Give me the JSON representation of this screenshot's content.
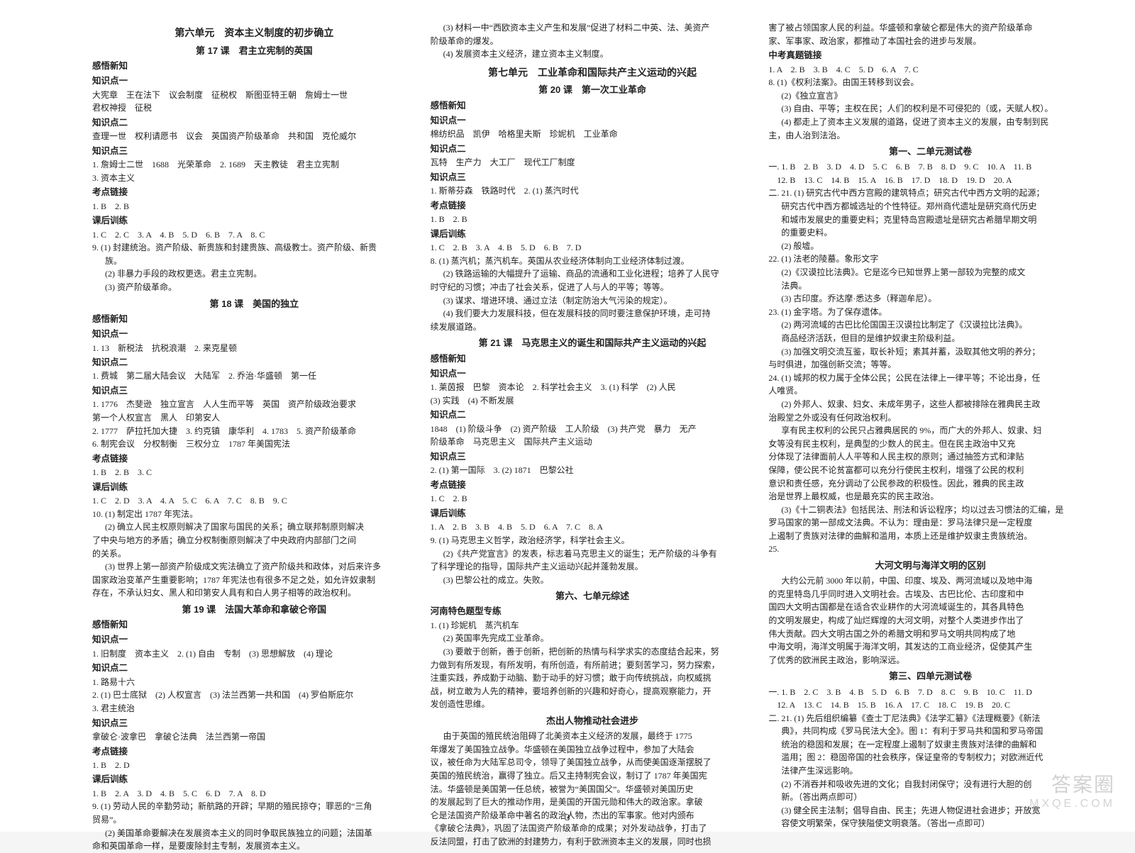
{
  "pageNumber": "3",
  "watermark": {
    "main": "答案圈",
    "sub": "MXQE.COM"
  },
  "col1": [
    {
      "t": "section",
      "v": "第六单元　资本主义制度的初步确立"
    },
    {
      "t": "lesson",
      "v": "第 17 课　君主立宪制的英国"
    },
    {
      "t": "sub",
      "v": "感悟新知"
    },
    {
      "t": "sub",
      "v": "知识点一"
    },
    {
      "t": "l",
      "v": "大宪章　王在法下　议会制度　征税权　斯图亚特王朝　詹姆士一世"
    },
    {
      "t": "l",
      "v": "君权神授　征税"
    },
    {
      "t": "sub",
      "v": "知识点二"
    },
    {
      "t": "l",
      "v": "查理一世　权利请愿书　议会　英国资产阶级革命　共和国　克伦威尔"
    },
    {
      "t": "sub",
      "v": "知识点三"
    },
    {
      "t": "l",
      "v": "1. 詹姆士二世　1688　光荣革命　2. 1689　天主教徒　君主立宪制"
    },
    {
      "t": "l",
      "v": "3. 资本主义"
    },
    {
      "t": "sub",
      "v": "考点链接"
    },
    {
      "t": "l",
      "v": "1. B　2. B"
    },
    {
      "t": "sub",
      "v": "课后训练"
    },
    {
      "t": "l",
      "v": "1. C　2. C　3. A　4. B　5. D　6. B　7. A　8. C"
    },
    {
      "t": "l",
      "v": "9. (1) 封建统治。资产阶级、新贵族和封建贵族、高级教士。资产阶级、新贵"
    },
    {
      "t": "il",
      "v": "族。"
    },
    {
      "t": "il",
      "v": "(2) 非暴力手段的政权更迭。君主立宪制。"
    },
    {
      "t": "il",
      "v": "(3) 资产阶级革命。"
    },
    {
      "t": "lesson",
      "v": "第 18 课　美国的独立"
    },
    {
      "t": "sub",
      "v": "感悟新知"
    },
    {
      "t": "sub",
      "v": "知识点一"
    },
    {
      "t": "l",
      "v": "1. 13　新税法　抗税浪潮　2. 来克星顿"
    },
    {
      "t": "sub",
      "v": "知识点二"
    },
    {
      "t": "l",
      "v": "1. 费城　第二届大陆会议　大陆军　2. 乔治·华盛顿　第一任"
    },
    {
      "t": "sub",
      "v": "知识点三"
    },
    {
      "t": "l",
      "v": "1. 1776　杰斐逊　独立宣言　人人生而平等　英国　资产阶级政治要求"
    },
    {
      "t": "l",
      "v": "第一个人权宣言　黑人　印第安人"
    },
    {
      "t": "l",
      "v": "2. 1777　萨拉托加大捷　3. 约克镇　康华利　4. 1783　5. 资产阶级革命"
    },
    {
      "t": "l",
      "v": "6. 制宪会议　分权制衡　三权分立　1787 年美国宪法"
    },
    {
      "t": "sub",
      "v": "考点链接"
    },
    {
      "t": "l",
      "v": "1. B　2. B　3. C"
    },
    {
      "t": "sub",
      "v": "课后训练"
    },
    {
      "t": "l",
      "v": "1. C　2. D　3. A　4. A　5. C　6. A　7. C　8. B　9. C"
    },
    {
      "t": "l",
      "v": "10. (1) 制定出 1787 年宪法。"
    },
    {
      "t": "il",
      "v": "(2) 确立人民主权原则解决了国家与国民的关系；确立联邦制原则解决"
    },
    {
      "t": "l",
      "v": "了中央与地方的矛盾；确立分权制衡原则解决了中央政府内部部门之间"
    },
    {
      "t": "l",
      "v": "的关系。"
    },
    {
      "t": "il",
      "v": "(3) 世界上第一部资产阶级成文宪法确立了资产阶级共和政体，对后来许多"
    },
    {
      "t": "l",
      "v": "国家政治变革产生重要影响；1787 年宪法也有很多不足之处，如允许奴隶制"
    },
    {
      "t": "l",
      "v": "存在，不承认妇女、黑人和印第安人具有和白人男子相等的政治权利。"
    },
    {
      "t": "lesson",
      "v": "第 19 课　法国大革命和拿破仑帝国"
    },
    {
      "t": "sub",
      "v": "感悟新知"
    },
    {
      "t": "sub",
      "v": "知识点一"
    },
    {
      "t": "l",
      "v": "1. 旧制度　资本主义　2. (1) 自由　专制　(3) 思想解放　(4) 理论"
    },
    {
      "t": "sub",
      "v": "知识点二"
    },
    {
      "t": "l",
      "v": "1. 路易十六"
    },
    {
      "t": "l",
      "v": "2. (1) 巴士底狱　(2) 人权宣言　(3) 法兰西第一共和国　(4) 罗伯斯庇尔"
    },
    {
      "t": "l",
      "v": "3. 君主统治"
    },
    {
      "t": "sub",
      "v": "知识点三"
    },
    {
      "t": "l",
      "v": "拿破仑·波拿巴　拿破仑法典　法兰西第一帝国"
    },
    {
      "t": "sub",
      "v": "考点链接"
    },
    {
      "t": "l",
      "v": "1. B　2. D"
    },
    {
      "t": "sub",
      "v": "课后训练"
    },
    {
      "t": "l",
      "v": "1. B　2. A　3. D　4. B　5. C　6. D　7. A　8. D"
    },
    {
      "t": "l",
      "v": "9. (1) 劳动人民的辛勤劳动；新航路的开辟；早期的殖民掠夺；罪恶的“三角"
    },
    {
      "t": "l",
      "v": "贸易”。"
    },
    {
      "t": "il",
      "v": "(2) 美国革命要解决在发展资本主义的同时争取民族独立的问题；法国革"
    },
    {
      "t": "l",
      "v": "命和英国革命一样，是要废除封主专制，发展资本主义。"
    }
  ],
  "col2": [
    {
      "t": "il",
      "v": "(3) 材料一中“西欧资本主义产生和发展”促进了材料二中英、法、美资产"
    },
    {
      "t": "l",
      "v": "阶级革命的爆发。"
    },
    {
      "t": "il",
      "v": "(4) 发展资本主义经济，建立资本主义制度。"
    },
    {
      "t": "section",
      "v": "第七单元　工业革命和国际共产主义运动的兴起"
    },
    {
      "t": "lesson",
      "v": "第 20 课　第一次工业革命"
    },
    {
      "t": "sub",
      "v": "感悟新知"
    },
    {
      "t": "sub",
      "v": "知识点一"
    },
    {
      "t": "l",
      "v": "棉纺织品　凯伊　哈格里夫斯　珍妮机　工业革命"
    },
    {
      "t": "sub",
      "v": "知识点二"
    },
    {
      "t": "l",
      "v": "瓦特　生产力　大工厂　现代工厂制度"
    },
    {
      "t": "sub",
      "v": "知识点三"
    },
    {
      "t": "l",
      "v": "1. 斯蒂芬森　铁路时代　2. (1) 蒸汽时代"
    },
    {
      "t": "sub",
      "v": "考点链接"
    },
    {
      "t": "l",
      "v": "1. B　2. B"
    },
    {
      "t": "sub",
      "v": "课后训练"
    },
    {
      "t": "l",
      "v": "1. C　2. B　3. A　4. B　5. D　6. B　7. D"
    },
    {
      "t": "l",
      "v": "8. (1) 蒸汽机；蒸汽机车。英国从农业经济体制向工业经济体制过渡。"
    },
    {
      "t": "il",
      "v": "(2) 铁路运输的大幅提升了运输、商品的流通和工业化进程；培养了人民守"
    },
    {
      "t": "l",
      "v": "时守纪的习惯；冲击了社会关系，促进了人与人的平等；等等。"
    },
    {
      "t": "il",
      "v": "(3) 谋求、增进环境、通过立法（制定防治大气污染的规定）。"
    },
    {
      "t": "il",
      "v": "(4) 我们要大力发展科技，但在发展科技的同时要注意保护环境，走可持"
    },
    {
      "t": "l",
      "v": "续发展道路。"
    },
    {
      "t": "lesson",
      "v": "第 21 课　马克思主义的诞生和国际共产主义运动的兴起"
    },
    {
      "t": "sub",
      "v": "感悟新知"
    },
    {
      "t": "sub",
      "v": "知识点一"
    },
    {
      "t": "l",
      "v": "1. 莱茵报　巴黎　资本论　2. 科学社会主义　3. (1) 科学　(2) 人民"
    },
    {
      "t": "l",
      "v": "(3) 实践　(4) 不断发展"
    },
    {
      "t": "sub",
      "v": "知识点二"
    },
    {
      "t": "l",
      "v": "1848　(1) 阶级斗争　(2) 资产阶级　工人阶级　(3) 共产党　暴力　无产"
    },
    {
      "t": "l",
      "v": "阶级革命　马克思主义　国际共产主义运动"
    },
    {
      "t": "sub",
      "v": "知识点三"
    },
    {
      "t": "l",
      "v": "2. (1) 第一国际　3. (2) 1871　巴黎公社"
    },
    {
      "t": "sub",
      "v": "考点链接"
    },
    {
      "t": "l",
      "v": "1. C　2. B"
    },
    {
      "t": "sub",
      "v": "课后训练"
    },
    {
      "t": "l",
      "v": "1. A　2. B　3. B　4. B　5. D　6. A　7. C　8. A"
    },
    {
      "t": "l",
      "v": "9. (1) 马克思主义哲学，政治经济学，科学社会主义。"
    },
    {
      "t": "il",
      "v": "(2)《共产党宣言》的发表，标志着马克思主义的诞生；无产阶级的斗争有"
    },
    {
      "t": "l",
      "v": "了科学理论的指导，国际共产主义运动兴起并蓬勃发展。"
    },
    {
      "t": "il",
      "v": "(3) 巴黎公社的成立。失败。"
    },
    {
      "t": "lesson",
      "v": "第六、七单元综述"
    },
    {
      "t": "sub",
      "v": "河南特色题型专练"
    },
    {
      "t": "l",
      "v": "1. (1) 珍妮机　蒸汽机车"
    },
    {
      "t": "il",
      "v": "(2) 英国率先完成工业革命。"
    },
    {
      "t": "il",
      "v": "(3) 要敢于创新，善于创新，把创新的热情与科学求实的态度结合起来，努"
    },
    {
      "t": "l",
      "v": "力做到有所发现，有所发明，有所创造，有所前进；要刻苦学习，努力探索，"
    },
    {
      "t": "l",
      "v": "注重实践，养成勤于动脑、勤于动手的好习惯；敢于向传统挑战，向权威挑"
    },
    {
      "t": "l",
      "v": "战，树立敢为人先的精神，要培养创新的兴趣和好奇心，提高观察能力，开"
    },
    {
      "t": "l",
      "v": "发创造性思维。"
    },
    {
      "t": "lesson",
      "v": "杰出人物推动社会进步"
    },
    {
      "t": "il",
      "v": "由于英国的殖民统治阻碍了北美资本主义经济的发展，最终于 1775"
    },
    {
      "t": "l",
      "v": "年爆发了美国独立战争。华盛顿在美国独立战争过程中，参加了大陆会"
    },
    {
      "t": "l",
      "v": "议，被任命为大陆军总司令，领导了美国独立战争，从而使美国逐渐摆脱了"
    },
    {
      "t": "l",
      "v": "英国的殖民统治，赢得了独立。后又主持制宪会议，制订了 1787 年美国宪"
    },
    {
      "t": "l",
      "v": "法。华盛顿是美国第一任总统，被誉为“美国国父”。华盛顿对美国历史"
    },
    {
      "t": "l",
      "v": "的发展起到了巨大的推动作用，是美国的开国元勋和伟大的政治家。拿破"
    },
    {
      "t": "l",
      "v": "仑是法国资产阶级革命中著名的政治人物，杰出的军事家。他对内颁布"
    },
    {
      "t": "l",
      "v": "《拿破仑法典》，巩固了法国资产阶级革命的成果；对外发动战争，打击了"
    },
    {
      "t": "l",
      "v": "反法同盟，打击了欧洲的封建势力，有利于欧洲资本主义的发展，同时也损"
    }
  ],
  "col3": [
    {
      "t": "l",
      "v": "害了被占领国家人民的利益。华盛顿和拿破仑都是伟大的资产阶级革命"
    },
    {
      "t": "l",
      "v": "家、军事家、政治家，都推动了本国社会的进步与发展。"
    },
    {
      "t": "sub",
      "v": "中考真题链接"
    },
    {
      "t": "l",
      "v": "1. A　2. B　3. B　4. C　5. D　6. A　7. C"
    },
    {
      "t": "l",
      "v": "8. (1)《权利法案》。由国王转移到议会。"
    },
    {
      "t": "il",
      "v": "(2)《独立宣言》"
    },
    {
      "t": "il",
      "v": "(3) 自由、平等；主权在民；人们的权利是不可侵犯的（或，天赋人权）。"
    },
    {
      "t": "il",
      "v": "(4) 都走上了资本主义发展的道路，促进了资本主义的发展，由专制到民"
    },
    {
      "t": "l",
      "v": "主，由人治到法治。"
    },
    {
      "t": "lesson",
      "v": "第一、二单元测试卷"
    },
    {
      "t": "l",
      "v": "一. 1. B　2. B　3. D　4. D　5. C　6. B　7. B　8. D　9. C　10. A　11. B"
    },
    {
      "t": "l",
      "v": "　12. B　13. C　14. B　15. A　16. B　17. D　18. D　19. D　20. A"
    },
    {
      "t": "l",
      "v": "二. 21. (1) 研究古代中西方宫殿的建筑特点；研究古代中西方文明的起源；"
    },
    {
      "t": "il",
      "v": "研究古代中西方都城选址的个性特征。郑州商代遗址是研究商代历史"
    },
    {
      "t": "il",
      "v": "和城市发展史的重要史料；克里特岛宫殿遗址是研究古希腊早期文明"
    },
    {
      "t": "il",
      "v": "的重要史料。"
    },
    {
      "t": "il",
      "v": "(2) 般墟。"
    },
    {
      "t": "l",
      "v": "22. (1) 法老的陵墓。象形文字"
    },
    {
      "t": "il",
      "v": "(2)《汉谟拉比法典》。它是迄今已知世界上第一部较为完整的成文"
    },
    {
      "t": "il",
      "v": "法典。"
    },
    {
      "t": "il",
      "v": "(3) 古印度。乔达摩·悉达多（释迦牟尼）。"
    },
    {
      "t": "l",
      "v": "23. (1) 金字塔。为了保存遗体。"
    },
    {
      "t": "il",
      "v": "(2) 两河流域的古巴比伦国国王汉谟拉比制定了《汉谟拉比法典》。"
    },
    {
      "t": "il",
      "v": "商品经济活跃，但目的是维护奴隶主阶级利益。"
    },
    {
      "t": "il",
      "v": "(3) 加强文明交流互鉴，取长补短；素其并蓄，汲取其他文明的养分；"
    },
    {
      "t": "l",
      "v": "与时俱进，加强创新交流；等等。"
    },
    {
      "t": "l",
      "v": "24. (1) 城邦的权力属于全体公民；公民在法律上一律平等；不论出身，任"
    },
    {
      "t": "l",
      "v": "人唯贤。"
    },
    {
      "t": "il",
      "v": "(2) 外邦人、奴隶、妇女、未成年男子，这些人都被排除在雅典民主政"
    },
    {
      "t": "l",
      "v": "治殿堂之外或没有任何政治权利。"
    },
    {
      "t": "il",
      "v": "享有民主权利的公民只占雅典居民的 9%，而广大的外邦人、奴隶、妇"
    },
    {
      "t": "l",
      "v": "女等没有民主权利，是典型的少数人的民主。但在民主政治中又充"
    },
    {
      "t": "l",
      "v": "分体现了法律面前人人平等和人民主权的原则；通过抽签方式和津贴"
    },
    {
      "t": "l",
      "v": "保障，使公民不论贫富都可以充分行使民主权利，增强了公民的权利"
    },
    {
      "t": "l",
      "v": "意识和责任感，充分调动了公民参政的积极性。因此，雅典的民主政"
    },
    {
      "t": "l",
      "v": "治是世界上最权威，也是最充实的民主政治。"
    },
    {
      "t": "il",
      "v": "(3)《十二铜表法》包括民法、刑法和诉讼程序；均以过去习惯法的汇编，是"
    },
    {
      "t": "l",
      "v": "罗马国家的第一部成文法典。不认为：理由是：罗马法律只是一定程度"
    },
    {
      "t": "l",
      "v": "上遏制了贵族对法律的曲解和滥用，本质上还是维护奴隶主贵族统治。"
    },
    {
      "t": "l",
      "v": "25."
    },
    {
      "t": "lesson",
      "v": "大河文明与海洋文明的区别"
    },
    {
      "t": "il",
      "v": "大约公元前 3000 年以前，中国、印度、埃及、两河流域以及地中海"
    },
    {
      "t": "l",
      "v": "的克里特岛几乎同时进入文明社会。古埃及、古巴比伦、古印度和中"
    },
    {
      "t": "l",
      "v": "国四大文明古国都是在适合农业耕作的大河流域诞生的，其各具特色"
    },
    {
      "t": "l",
      "v": "的文明发展史，构成了灿烂辉煌的大河文明，对整个人类进步作出了"
    },
    {
      "t": "l",
      "v": "伟大贡献。四大文明古国之外的希腊文明和罗马文明共同构成了地"
    },
    {
      "t": "l",
      "v": "中海文明，海洋文明属于海洋文明，其发达的工商业经济，促使其产生"
    },
    {
      "t": "l",
      "v": "了优秀的欧洲民主政治，影响深远。"
    },
    {
      "t": "lesson",
      "v": "第三、四单元测试卷"
    },
    {
      "t": "l",
      "v": "一. 1. B　2. C　3. B　4. B　5. D　6. B　7. D　8. C　9. B　10. C　11. D"
    },
    {
      "t": "l",
      "v": "　12. A　13. C　14. B　15. B　16. A　17. C　18. C　19. B　20. C"
    },
    {
      "t": "l",
      "v": "二. 21. (1) 先后组织编纂《查士丁尼法典》《法学汇纂》《法理概要》《新法"
    },
    {
      "t": "il",
      "v": "典》，共同构成《罗马民法大全》。图 1：有利于罗马共和国和罗马帝国"
    },
    {
      "t": "il",
      "v": "统治的稳固和发展；在一定程度上遏制了奴隶主贵族对法律的曲解和"
    },
    {
      "t": "il",
      "v": "滥用；图 2：稳固帝国的社会秩序，保证皇帝的专制权力；对欧洲近代"
    },
    {
      "t": "il",
      "v": "法律产生深远影响。"
    },
    {
      "t": "il",
      "v": "(2) 不消吞并和吸收先进的文化；自我封闭保守；没有进行大胆的创"
    },
    {
      "t": "il",
      "v": "新。（答出两点即可）"
    },
    {
      "t": "il",
      "v": "(3) 健全民主法制；倡导自由、民主；先进人物促进社会进步；开放宽"
    },
    {
      "t": "il",
      "v": "容使文明繁荣，保守狭隘使文明衰落。（答出一点即可）"
    }
  ]
}
